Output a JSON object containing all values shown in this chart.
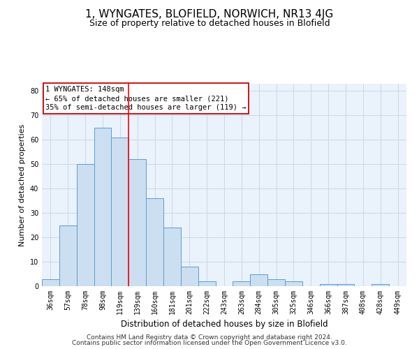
{
  "title": "1, WYNGATES, BLOFIELD, NORWICH, NR13 4JG",
  "subtitle": "Size of property relative to detached houses in Blofield",
  "xlabel": "Distribution of detached houses by size in Blofield",
  "ylabel": "Number of detached properties",
  "categories": [
    "36sqm",
    "57sqm",
    "78sqm",
    "98sqm",
    "119sqm",
    "139sqm",
    "160sqm",
    "181sqm",
    "201sqm",
    "222sqm",
    "243sqm",
    "263sqm",
    "284sqm",
    "305sqm",
    "325sqm",
    "346sqm",
    "366sqm",
    "387sqm",
    "408sqm",
    "428sqm",
    "449sqm"
  ],
  "values": [
    3,
    25,
    50,
    65,
    61,
    52,
    36,
    24,
    8,
    2,
    0,
    2,
    5,
    3,
    2,
    0,
    1,
    1,
    0,
    1,
    0
  ],
  "bar_color": "#ccdff0",
  "bar_edge_color": "#5b9bd5",
  "annotation_text": "1 WYNGATES: 148sqm\n← 65% of detached houses are smaller (221)\n35% of semi-detached houses are larger (119) →",
  "annotation_box_color": "#ffffff",
  "annotation_box_edge": "#cc0000",
  "ylim": [
    0,
    83
  ],
  "yticks": [
    0,
    10,
    20,
    30,
    40,
    50,
    60,
    70,
    80
  ],
  "grid_color": "#c8d8e8",
  "background_color": "#eaf2fb",
  "footer1": "Contains HM Land Registry data © Crown copyright and database right 2024.",
  "footer2": "Contains public sector information licensed under the Open Government Licence v3.0.",
  "title_fontsize": 11,
  "subtitle_fontsize": 9,
  "xlabel_fontsize": 8.5,
  "ylabel_fontsize": 8,
  "tick_fontsize": 7,
  "annotation_fontsize": 7.5,
  "footer_fontsize": 6.5,
  "red_line_x": 4.5
}
